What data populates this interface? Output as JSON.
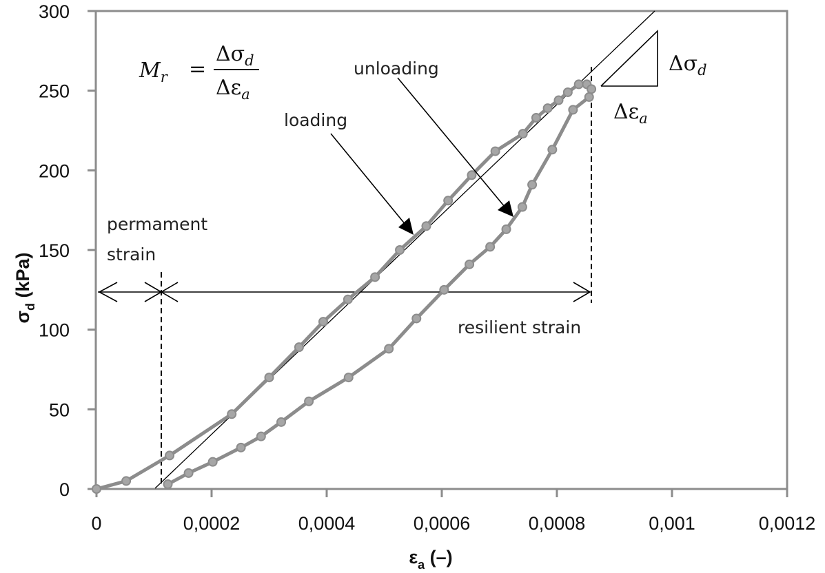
{
  "chart_data": {
    "type": "line",
    "title": "",
    "xlabel": "εa (–)",
    "ylabel": "σd (kPa)",
    "xlim": [
      0,
      0.0012
    ],
    "ylim": [
      0,
      300
    ],
    "grid": false,
    "legend": null,
    "x_ticks": [
      "0",
      "0,0002",
      "0,0004",
      "0,0006",
      "0,0008",
      "0,001",
      "0,0012"
    ],
    "x_tick_values": [
      0,
      0.0002,
      0.0004,
      0.0006,
      0.0008,
      0.001,
      0.0012
    ],
    "y_ticks": [
      "0",
      "50",
      "100",
      "150",
      "200",
      "250",
      "300"
    ],
    "y_tick_values": [
      0,
      50,
      100,
      150,
      200,
      250,
      300
    ],
    "series": [
      {
        "name": "loading",
        "color": "#8c8c8c",
        "x": [
          0,
          5.16e-05,
          0.000127,
          0.000235,
          0.0003,
          0.000352,
          0.000394,
          0.000437,
          0.000484,
          0.000527,
          0.000573,
          0.000611,
          0.000652,
          0.000693,
          0.000741,
          0.000764,
          0.000784,
          0.000803,
          0.000819,
          0.000838,
          0.000852
        ],
        "y": [
          0,
          5,
          21,
          47,
          70,
          89,
          105,
          119,
          133,
          150,
          165,
          181,
          197,
          212,
          223,
          233,
          239,
          244,
          249,
          254,
          254
        ]
      },
      {
        "name": "unloading",
        "color": "#8c8c8c",
        "x": [
          0.00086,
          0.000856,
          0.000828,
          0.000792,
          0.000757,
          0.00074,
          0.000712,
          0.000684,
          0.000648,
          0.000604,
          0.000556,
          0.000508,
          0.000438,
          0.000369,
          0.000321,
          0.000286,
          0.000251,
          0.000202,
          0.00016,
          0.000124
        ],
        "y": [
          251,
          246,
          238,
          213,
          191,
          177,
          163,
          152,
          141,
          125,
          107,
          88,
          70,
          55,
          42,
          33,
          26,
          17,
          10,
          3
        ]
      }
    ],
    "reference_lines": {
      "resilient_modulus_secant": {
        "x": [
          0.000102,
          0.000973
        ],
        "y": [
          0,
          300
        ],
        "color": "#000000"
      },
      "permanent_strain_marker_x": 0.000112,
      "peak_strain_marker_x": 0.000862,
      "strain_arrow_y": 124
    },
    "annotations": [
      {
        "text": "loading",
        "arrow_from": [
          0.000408,
          223
        ],
        "arrow_to": [
          0.000552,
          160
        ]
      },
      {
        "text": "unloading",
        "arrow_from": [
          0.000525,
          258
        ],
        "arrow_to": [
          0.000726,
          171
        ]
      },
      {
        "text": "permament strain"
      },
      {
        "text": "resilient strain"
      },
      {
        "text": "Mr = Δσd / Δεa"
      },
      {
        "text": "Δσd"
      },
      {
        "text": "Δεa"
      }
    ]
  },
  "labels": {
    "x_axis_symbol": "ε",
    "x_axis_sub": "a",
    "x_axis_unit": " (–)",
    "y_axis_symbol": "σ",
    "y_axis_sub": "d",
    "y_axis_unit": " (kPa)",
    "loading": "loading",
    "unloading": "unloading",
    "permanent_line1": "permament",
    "permanent_line2": "strain",
    "resilient": "resilient strain",
    "formula_lhs": "M",
    "formula_lhs_sub": "r",
    "formula_eq": "=",
    "formula_num": "Δσ",
    "formula_num_sub": "d",
    "formula_den": "Δε",
    "formula_den_sub": "a",
    "tri_vertical": "Δσ",
    "tri_vertical_sub": "d",
    "tri_horizontal": "Δε",
    "tri_horizontal_sub": "a"
  },
  "colors": {
    "axis": "#8c8c8c",
    "series": "#8c8c8c",
    "marker_fill": "#a6a6a6",
    "annotation": "#000000"
  }
}
